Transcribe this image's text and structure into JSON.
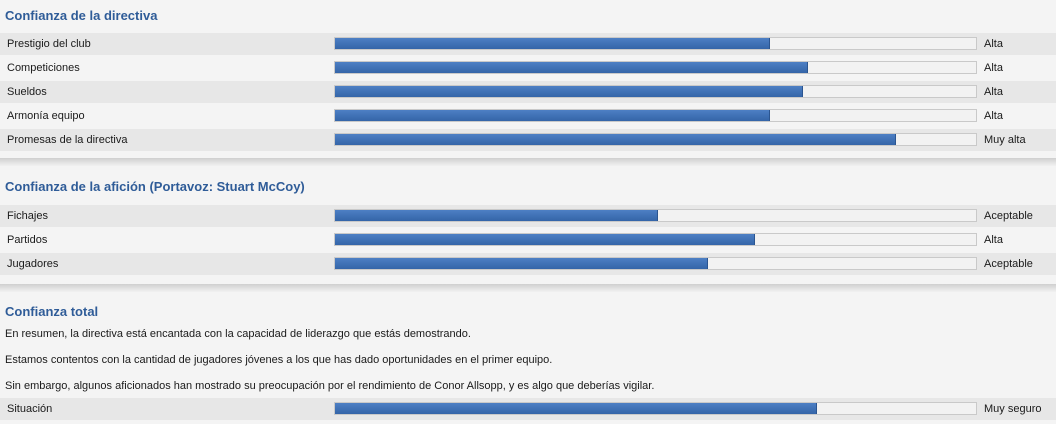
{
  "board": {
    "title": "Confianza de la directiva",
    "rows": [
      {
        "label": "Prestigio del club",
        "value": "Alta",
        "level": 0.677
      },
      {
        "label": "Competiciones",
        "value": "Alta",
        "level": 0.737
      },
      {
        "label": "Sueldos",
        "value": "Alta",
        "level": 0.728
      },
      {
        "label": "Armonía equipo",
        "value": "Alta",
        "level": 0.677
      },
      {
        "label": "Promesas de la directiva",
        "value": "Muy alta",
        "level": 0.874
      }
    ]
  },
  "fans": {
    "title": "Confianza de la afición (Portavoz: Stuart McCoy)",
    "rows": [
      {
        "label": "Fichajes",
        "value": "Aceptable",
        "level": 0.502
      },
      {
        "label": "Partidos",
        "value": "Alta",
        "level": 0.653
      },
      {
        "label": "Jugadores",
        "value": "Aceptable",
        "level": 0.58
      }
    ]
  },
  "overall": {
    "title": "Confianza total",
    "sentences": [
      "En resumen, la directiva está encantada con la capacidad de liderazgo que estás demostrando.",
      "Estamos contentos con la cantidad de jugadores jóvenes a los que has dado oportunidades en el primer equipo.",
      "Sin embargo, algunos aficionados han mostrado su preocupación por el rendimiento de Conor Allsopp, y es algo que deberías vigilar."
    ],
    "status": {
      "label": "Situación",
      "value": "Muy seguro",
      "level": 0.75
    }
  },
  "colors": {
    "accent": "#2f5c98",
    "bar": "#3a6cb0"
  }
}
